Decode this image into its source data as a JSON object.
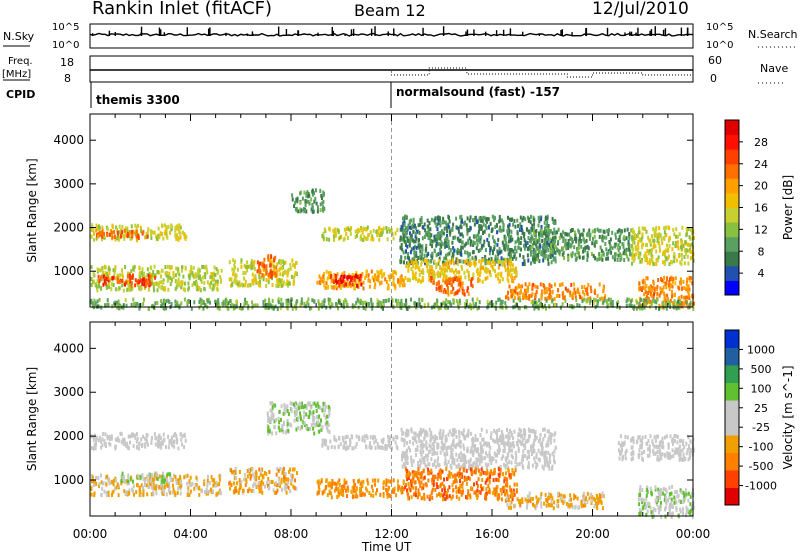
{
  "header": {
    "station": "Rankin Inlet (fitACF)",
    "beam": "Beam 12",
    "date": "12/Jul/2010"
  },
  "top_panels": {
    "nsky_label": "N.Sky",
    "nsky_ticks": [
      "10^5",
      "10^0"
    ],
    "nsearch_label": "N.Search",
    "nsearch_ticks": [
      "10^5",
      "10^0"
    ],
    "freq_label": "Freq.",
    "freq_unit": "[MHz]",
    "freq_ticks": [
      "18",
      "8"
    ],
    "nave_label": "Nave",
    "nave_ticks": [
      "60",
      "0"
    ],
    "cpid_label": "CPID",
    "cpid_segments": [
      {
        "start_hour": 0,
        "text": "themis 3300"
      },
      {
        "start_hour": 12,
        "text": "normalsound (fast) -157"
      }
    ]
  },
  "chart_data": [
    {
      "type": "heatmap",
      "title": "",
      "xlabel": "",
      "ylabel": "Slant Range [km]",
      "xlim": [
        0,
        24
      ],
      "ylim": [
        180,
        4600
      ],
      "x_ticks": [
        "00:00",
        "04:00",
        "08:00",
        "12:00",
        "16:00",
        "20:00",
        "00:00"
      ],
      "y_ticks": [
        1000,
        2000,
        3000,
        4000
      ],
      "colorbar": {
        "label": "Power [dB]",
        "ticks": [
          "28",
          "24",
          "20",
          "16",
          "12",
          "8",
          "4"
        ],
        "range": [
          0,
          30
        ],
        "colors": [
          "#0000ff",
          "#2050b0",
          "#3a7a4a",
          "#5aa060",
          "#88c040",
          "#c8d030",
          "#f0c000",
          "#ffa000",
          "#ff7000",
          "#ff4000",
          "#ff1000",
          "#e00000"
        ]
      },
      "regions": [
        {
          "h0": 0.0,
          "h1": 3.8,
          "r0": 1750,
          "r1": 2100,
          "level": 14
        },
        {
          "h0": 0.2,
          "h1": 2.4,
          "r0": 1800,
          "r1": 1980,
          "level": 22
        },
        {
          "h0": 0.0,
          "h1": 5.2,
          "r0": 600,
          "r1": 1150,
          "level": 13
        },
        {
          "h0": 0.3,
          "h1": 2.6,
          "r0": 700,
          "r1": 950,
          "level": 24
        },
        {
          "h0": 5.5,
          "h1": 8.2,
          "r0": 700,
          "r1": 1300,
          "level": 14
        },
        {
          "h0": 6.6,
          "h1": 7.4,
          "r0": 900,
          "r1": 1400,
          "level": 22
        },
        {
          "h0": 8.0,
          "h1": 9.3,
          "r0": 2400,
          "r1": 2900,
          "level": 8
        },
        {
          "h0": 9.2,
          "h1": 12.2,
          "r0": 1750,
          "r1": 2050,
          "level": 14
        },
        {
          "h0": 9.0,
          "h1": 12.5,
          "r0": 650,
          "r1": 1050,
          "level": 18
        },
        {
          "h0": 9.5,
          "h1": 10.8,
          "r0": 700,
          "r1": 950,
          "level": 26
        },
        {
          "h0": 12.3,
          "h1": 18.5,
          "r0": 1200,
          "r1": 2300,
          "level": 7
        },
        {
          "h0": 12.5,
          "h1": 17.0,
          "r0": 800,
          "r1": 1300,
          "level": 16
        },
        {
          "h0": 13.5,
          "h1": 15.2,
          "r0": 500,
          "r1": 900,
          "level": 22
        },
        {
          "h0": 16.5,
          "h1": 20.5,
          "r0": 400,
          "r1": 750,
          "level": 20
        },
        {
          "h0": 17.5,
          "h1": 21.5,
          "r0": 1300,
          "r1": 2000,
          "level": 8
        },
        {
          "h0": 21.5,
          "h1": 24.0,
          "r0": 1200,
          "r1": 2050,
          "level": 14
        },
        {
          "h0": 21.8,
          "h1": 24.0,
          "r0": 200,
          "r1": 900,
          "level": 20
        },
        {
          "h0": 0.0,
          "h1": 24.0,
          "r0": 180,
          "r1": 400,
          "level": 10
        }
      ]
    },
    {
      "type": "heatmap",
      "title": "",
      "xlabel": "Time UT",
      "ylabel": "Slant Range [km]",
      "xlim": [
        0,
        24
      ],
      "ylim": [
        180,
        4600
      ],
      "x_ticks": [
        "00:00",
        "04:00",
        "08:00",
        "12:00",
        "16:00",
        "20:00",
        "00:00"
      ],
      "y_ticks": [
        1000,
        2000,
        3000,
        4000
      ],
      "colorbar": {
        "label": "Velocity [m s^-1]",
        "ticks": [
          "1000",
          "500",
          "100",
          "25",
          "-25",
          "-100",
          "-500",
          "-1000"
        ],
        "range": [
          -1000,
          1000
        ],
        "colors": [
          "#e00000",
          "#ff4000",
          "#ff8000",
          "#f0a000",
          "#c8c8c8",
          "#c8c8c8",
          "#60c030",
          "#30a050",
          "#2060a0",
          "#0030d0"
        ]
      },
      "regions": [
        {
          "h0": 0.0,
          "h1": 3.8,
          "r0": 1750,
          "r1": 2100,
          "level": 0
        },
        {
          "h0": 0.0,
          "h1": 5.2,
          "r0": 700,
          "r1": 1150,
          "level": -200
        },
        {
          "h0": 1.2,
          "h1": 3.2,
          "r0": 1000,
          "r1": 1200,
          "level": 200
        },
        {
          "h0": 5.5,
          "h1": 8.2,
          "r0": 750,
          "r1": 1300,
          "level": -300
        },
        {
          "h0": 7.0,
          "h1": 9.5,
          "r0": 2100,
          "r1": 2800,
          "level": 150
        },
        {
          "h0": 9.2,
          "h1": 12.2,
          "r0": 1750,
          "r1": 2050,
          "level": 0
        },
        {
          "h0": 9.0,
          "h1": 12.5,
          "r0": 650,
          "r1": 1050,
          "level": -400
        },
        {
          "h0": 12.3,
          "h1": 18.5,
          "r0": 1300,
          "r1": 2200,
          "level": 0
        },
        {
          "h0": 12.5,
          "h1": 17.0,
          "r0": 600,
          "r1": 1300,
          "level": -500
        },
        {
          "h0": 16.5,
          "h1": 20.5,
          "r0": 400,
          "r1": 750,
          "level": -250
        },
        {
          "h0": 21.0,
          "h1": 24.0,
          "r0": 1500,
          "r1": 2050,
          "level": 0
        },
        {
          "h0": 21.8,
          "h1": 24.0,
          "r0": 200,
          "r1": 900,
          "level": 120
        }
      ]
    }
  ]
}
